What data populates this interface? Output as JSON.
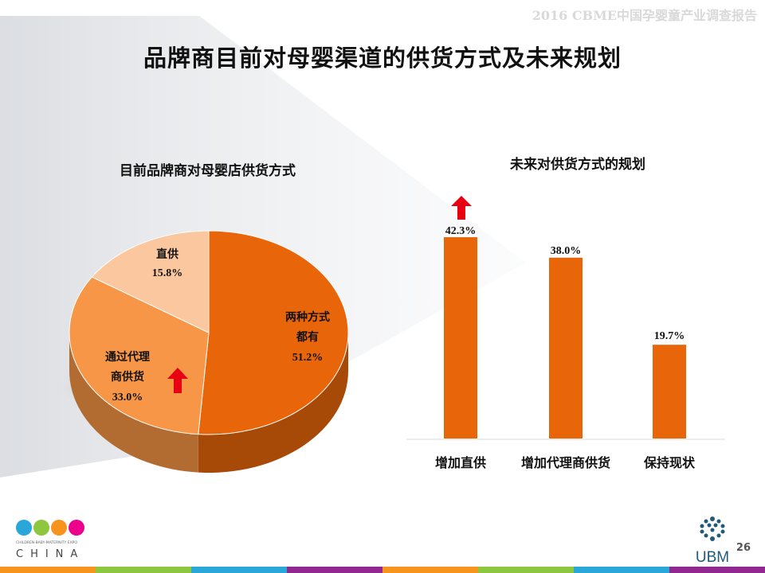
{
  "header": {
    "report_title": "2016 CBME中国孕婴童产业调查报告"
  },
  "slide": {
    "title": "品牌商目前对母婴渠道的供货方式及未来规划",
    "page_number": "26"
  },
  "left_chart": {
    "title": "目前品牌商对母婴店供货方式",
    "labels": [
      {
        "line1": "两种方式",
        "line2": "都有",
        "pct": "51.2%"
      },
      {
        "line1": "通过代理",
        "line2": "商供货",
        "pct": "33.0%"
      },
      {
        "line1": "直供",
        "line2": "",
        "pct": "15.8%"
      }
    ]
  },
  "right_chart": {
    "title": "未来对供货方式的规划",
    "categories": [
      "增加直供",
      "增加代理商供货",
      "保持现状"
    ],
    "value_labels": [
      "42.3%",
      "38.0%",
      "19.7%"
    ]
  },
  "chart_data": [
    {
      "type": "pie",
      "title": "目前品牌商对母婴店供货方式",
      "categories": [
        "两种方式都有",
        "通过代理商供货",
        "直供"
      ],
      "values": [
        51.2,
        33.0,
        15.8
      ],
      "colors": [
        "#e8650a",
        "#f79646",
        "#fbc79f"
      ]
    },
    {
      "type": "bar",
      "title": "未来对供货方式的规划",
      "categories": [
        "增加直供",
        "增加代理商供货",
        "保持现状"
      ],
      "values": [
        42.3,
        38.0,
        19.7
      ],
      "ylim": [
        0,
        50
      ],
      "grid": false,
      "color": "#e8650a"
    }
  ],
  "logos": {
    "left_brand": "CBME",
    "left_sub": "CHINA",
    "left_tagline": "CHILDREN·BABY·MATERNITY EXPO",
    "right_brand": "UBM"
  },
  "colors": {
    "accent": "#e8650a",
    "accent_light": "#f79646",
    "accent_pale": "#fbc79f",
    "arrow": "#e60012"
  }
}
